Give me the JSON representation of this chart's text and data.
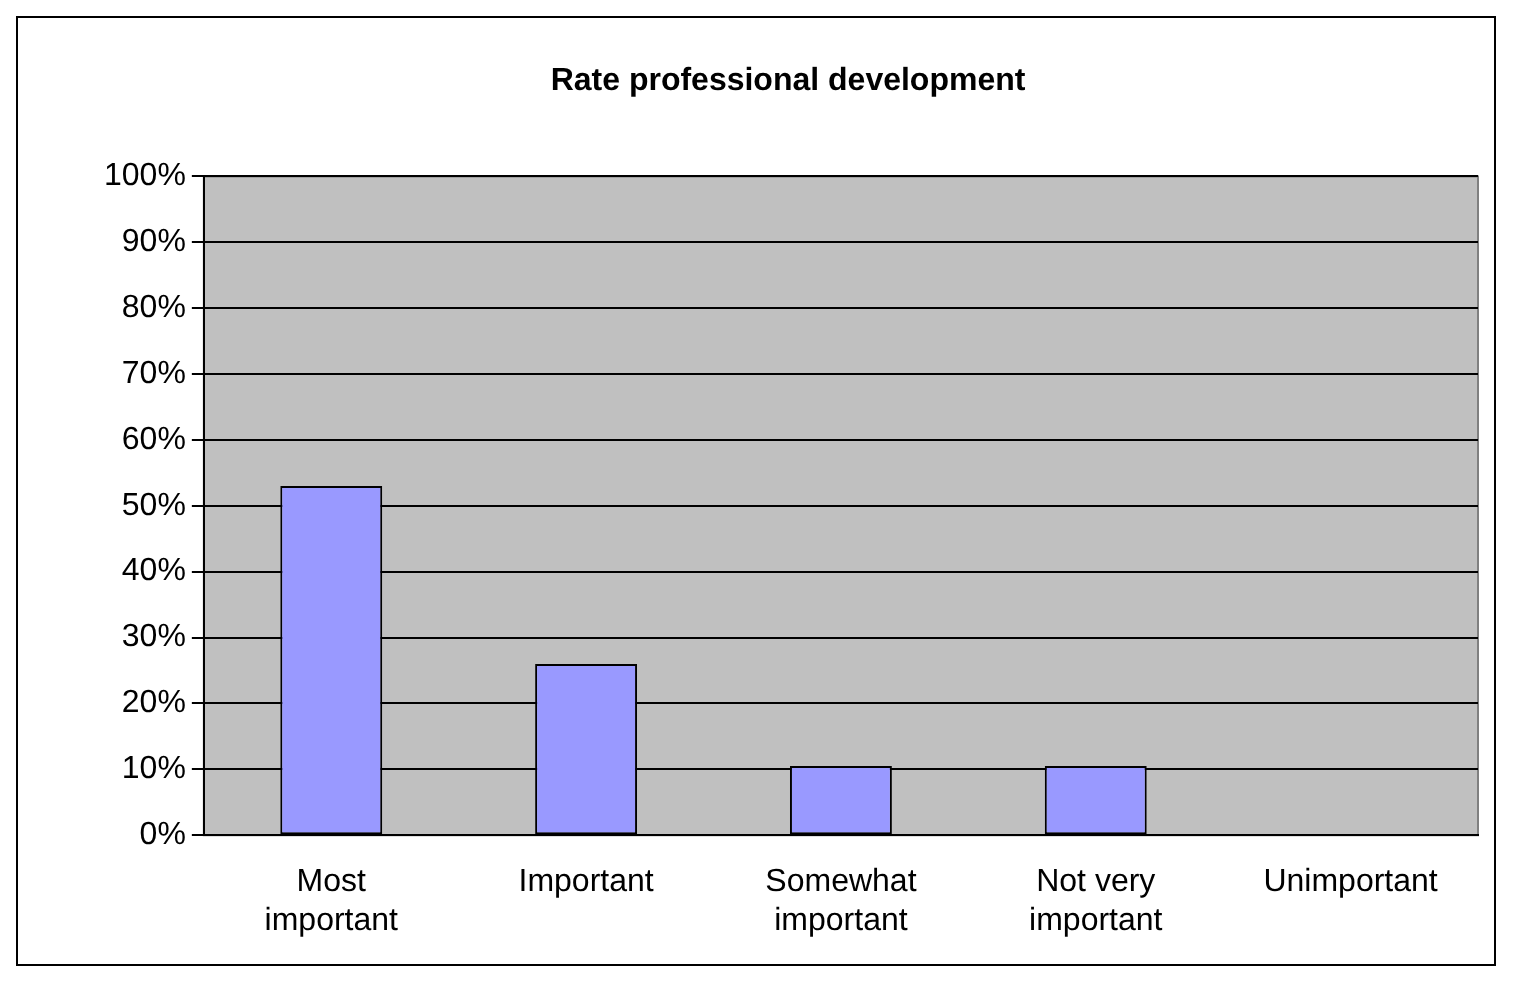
{
  "chart_data": {
    "type": "bar",
    "title": "Rate professional development",
    "categories": [
      "Most important",
      "Important",
      "Somewhat important",
      "Not very important",
      "Unimportant"
    ],
    "values": [
      53,
      26,
      10.5,
      10.5,
      0
    ],
    "color": "#9999ff",
    "ylim": [
      0,
      100
    ],
    "yticks": [
      {
        "value": 0,
        "label": "0%"
      },
      {
        "value": 10,
        "label": "10%"
      },
      {
        "value": 20,
        "label": "20%"
      },
      {
        "value": 30,
        "label": "30%"
      },
      {
        "value": 40,
        "label": "40%"
      },
      {
        "value": 50,
        "label": "50%"
      },
      {
        "value": 60,
        "label": "60%"
      },
      {
        "value": 70,
        "label": "70%"
      },
      {
        "value": 80,
        "label": "80%"
      },
      {
        "value": 90,
        "label": "90%"
      },
      {
        "value": 100,
        "label": "100%"
      }
    ],
    "grid": "y",
    "legend": false
  }
}
